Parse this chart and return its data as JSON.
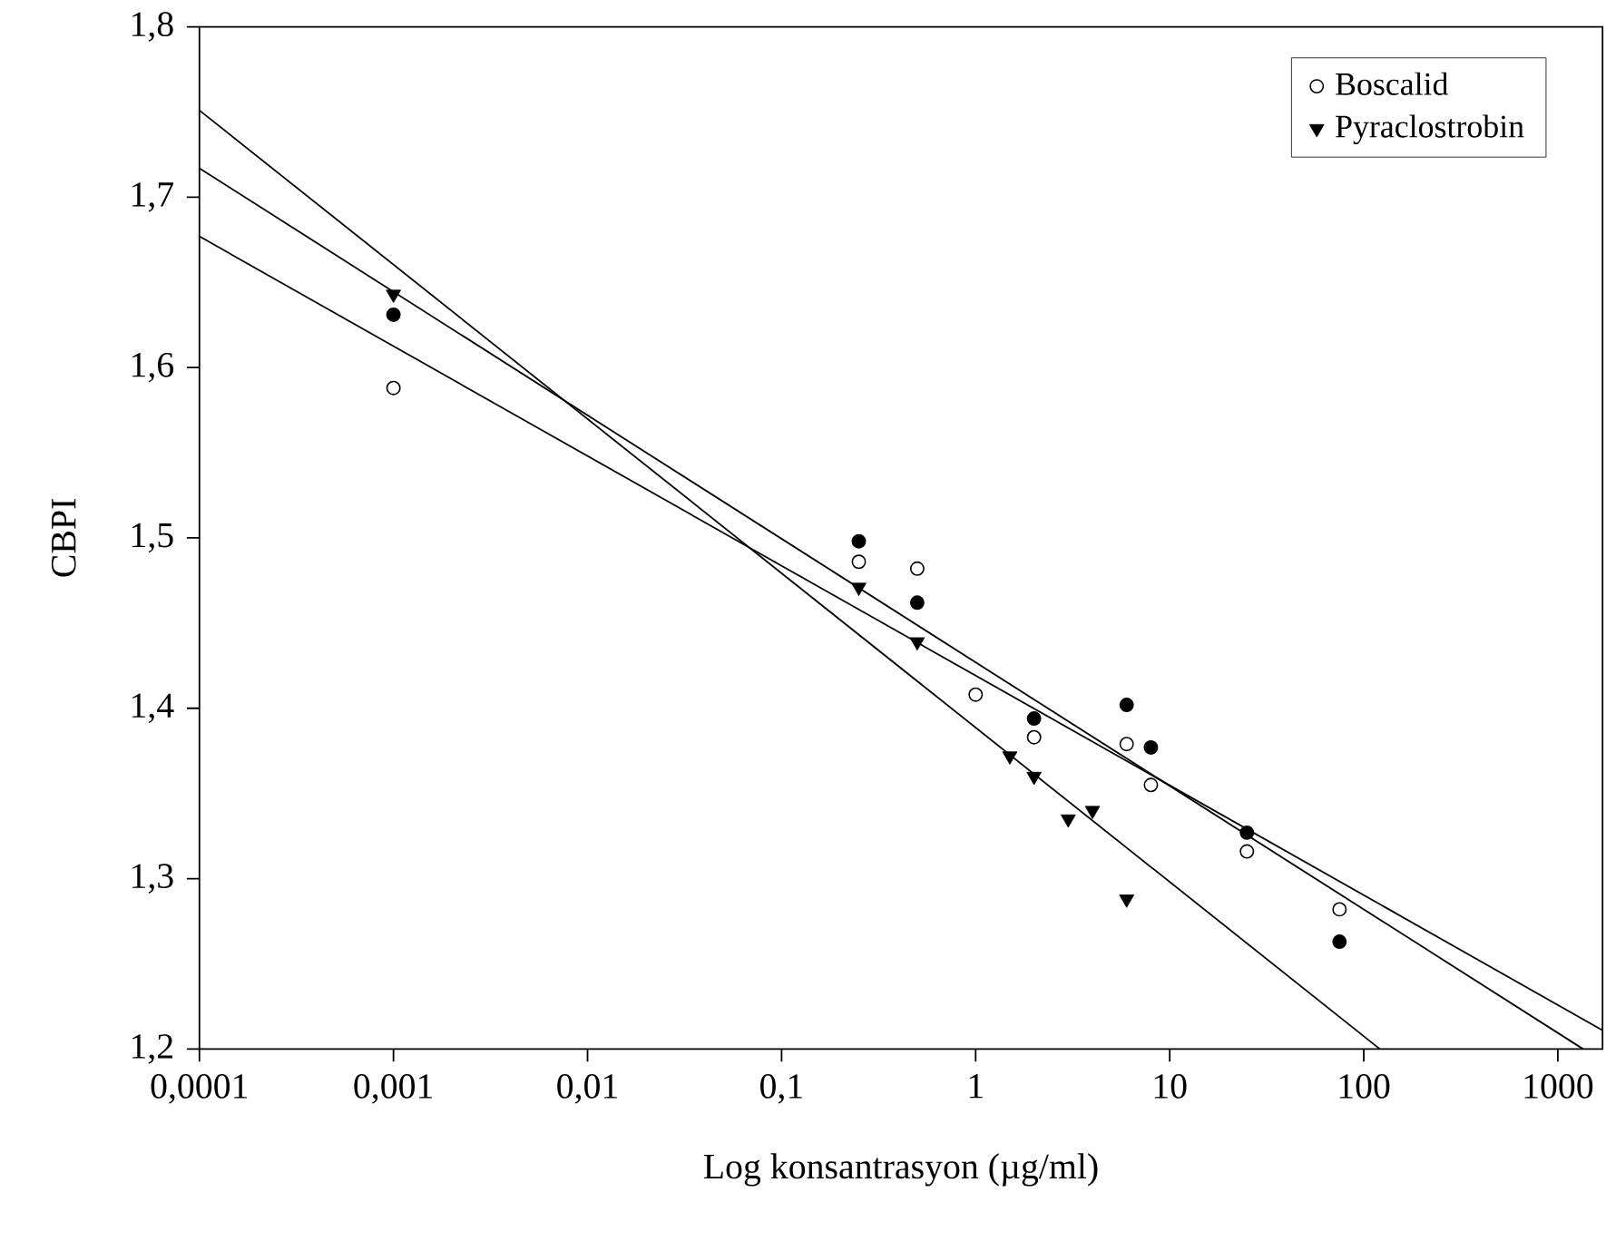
{
  "chart_data": {
    "type": "scatter",
    "xlabel": "Log konsantrasyon (µg/ml)",
    "ylabel": "CBPI",
    "log": "x",
    "grid": false,
    "legend": "top right",
    "xlim": [
      0.0001,
      1700
    ],
    "ylim": [
      1.2,
      1.8
    ],
    "xticks": [
      {
        "value": 0.0001,
        "label": "0,0001"
      },
      {
        "value": 0.001,
        "label": "0,001"
      },
      {
        "value": 0.01,
        "label": "0,01"
      },
      {
        "value": 0.1,
        "label": "0,1"
      },
      {
        "value": 1,
        "label": "1"
      },
      {
        "value": 10,
        "label": "10"
      },
      {
        "value": 100,
        "label": "100"
      },
      {
        "value": 1000,
        "label": "1000"
      }
    ],
    "yticks": [
      {
        "value": 1.2,
        "label": "1,2"
      },
      {
        "value": 1.3,
        "label": "1,3"
      },
      {
        "value": 1.4,
        "label": "1,4"
      },
      {
        "value": 1.5,
        "label": "1,5"
      },
      {
        "value": 1.6,
        "label": "1,6"
      },
      {
        "value": 1.7,
        "label": "1,7"
      },
      {
        "value": 1.8,
        "label": "1,8"
      }
    ],
    "series": [
      {
        "marker": "circle",
        "color": "#000000",
        "x": [
          0.001,
          0.25,
          0.5,
          2,
          6,
          8,
          25,
          75
        ],
        "values": [
          1.631,
          1.498,
          1.462,
          1.394,
          1.402,
          1.377,
          1.327,
          1.263
        ]
      },
      {
        "name": "Boscalid",
        "marker": "circle",
        "color": "#ffffff",
        "x": [
          0.001,
          0.25,
          0.5,
          1,
          2,
          6,
          8,
          25,
          75
        ],
        "values": [
          1.588,
          1.486,
          1.482,
          1.408,
          1.383,
          1.379,
          1.355,
          1.316,
          1.282
        ]
      },
      {
        "name": "Pyraclostrobin",
        "marker": "triangle",
        "color": "#000000",
        "x": [
          0.001,
          0.25,
          0.5,
          1.5,
          2,
          3,
          4,
          6
        ],
        "values": [
          1.643,
          1.471,
          1.439,
          1.372,
          1.36,
          1.335,
          1.34,
          1.288
        ]
      },
      {
        "type": "line",
        "marker": "none",
        "color": "#000000",
        "x": [
          0.0001,
          121
        ],
        "values": [
          1.751,
          1.2
        ]
      },
      {
        "type": "line",
        "marker": "none",
        "color": "#000000",
        "x": [
          0.0001,
          1350
        ],
        "values": [
          1.717,
          1.2
        ]
      },
      {
        "type": "line",
        "marker": "none",
        "color": "#000000",
        "x": [
          0.0001,
          1700
        ],
        "values": [
          1.677,
          1.211
        ]
      }
    ]
  }
}
